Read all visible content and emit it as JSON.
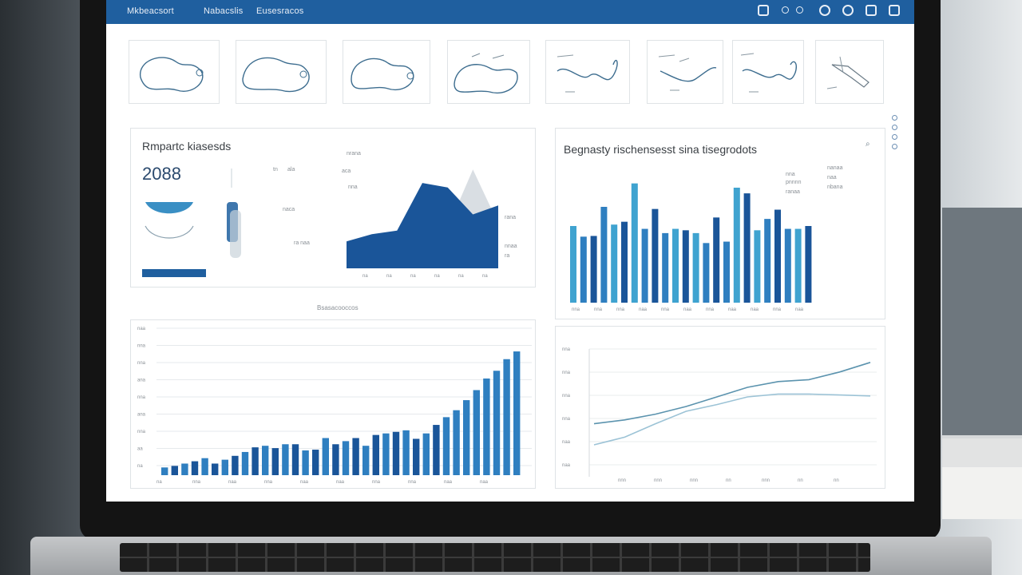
{
  "nav": {
    "brand": "Mkbeacsort",
    "link1": "Nabacslis",
    "link2": "Eusesracos",
    "icons": [
      "refresh-icon",
      "info-icon",
      "user-icon",
      "settings-icon",
      "help-icon",
      "close-icon"
    ]
  },
  "report_panel": {
    "title": "Rmpartc kiasesds",
    "kpi": "2088",
    "tiny_labels": [
      "tn",
      "ala",
      "naca",
      "ra naa",
      "nrana",
      "aca",
      "nna"
    ],
    "legend_labels": [
      "rana",
      "nnaa",
      "ra"
    ],
    "x_labels": [
      "na",
      "na",
      "na",
      "na",
      "na",
      "na"
    ]
  },
  "histogram_panel": {
    "title": "Begnasty rischensesst sina tisegrodots",
    "legend": [
      "nna",
      "pnnnn",
      "ranaa",
      "nanaa",
      "naa",
      "nbana"
    ],
    "x_labels": [
      "nna",
      "nna",
      "nna",
      "naa",
      "nna",
      "naa",
      "nna",
      "naa",
      "naa",
      "nna",
      "naa"
    ]
  },
  "bottom_left_panel": {
    "caption": "Bsasacooccos",
    "y_labels": [
      "naa",
      "nna",
      "nna",
      "ana",
      "nna",
      "ana",
      "nna",
      "aa",
      "na"
    ],
    "x_labels": [
      "na",
      "nna",
      "naa",
      "nna",
      "naa",
      "naa",
      "nna",
      "nna",
      "naa",
      "naa"
    ]
  },
  "bottom_right_panel": {
    "y_labels": [
      "nna",
      "nna",
      "nna",
      "nna",
      "naa",
      "naa"
    ],
    "x_labels": [
      "nnn",
      "nnn",
      "nnn",
      "nn",
      "nnn",
      "nn",
      "nn"
    ]
  },
  "colors": {
    "topbar": "#1f5f9f",
    "dark_blue": "#1a5599",
    "mid_blue": "#2f7fc0",
    "light_blue": "#3fa3d0",
    "line_dark": "#4b8aa8",
    "line_light": "#8fb9ce"
  },
  "chart_data": [
    {
      "type": "area",
      "series": [
        {
          "values": [
            30,
            38,
            42,
            95,
            90,
            60,
            70
          ]
        },
        {
          "values": [
            20,
            30,
            35,
            40,
            45,
            110,
            50
          ]
        }
      ]
    },
    {
      "type": "bar",
      "values": [
        108,
        93,
        94,
        135,
        110,
        114,
        168,
        104,
        132,
        98,
        104,
        102,
        98,
        84,
        120,
        86,
        162,
        154,
        102,
        118,
        131,
        104,
        104,
        108
      ]
    },
    {
      "type": "bar",
      "values": [
        10,
        12,
        15,
        18,
        22,
        15,
        20,
        25,
        30,
        36,
        38,
        35,
        40,
        40,
        32,
        33,
        48,
        40,
        44,
        48,
        38,
        52,
        54,
        56,
        58,
        47,
        54,
        65,
        75,
        84,
        97,
        110,
        125,
        135,
        150,
        160
      ]
    },
    {
      "type": "line",
      "series": [
        {
          "values": [
            52,
            56,
            62,
            70,
            80,
            90,
            96,
            98,
            106,
            116
          ]
        },
        {
          "values": [
            30,
            38,
            52,
            65,
            72,
            80,
            83,
            83,
            82,
            81
          ]
        }
      ]
    }
  ]
}
